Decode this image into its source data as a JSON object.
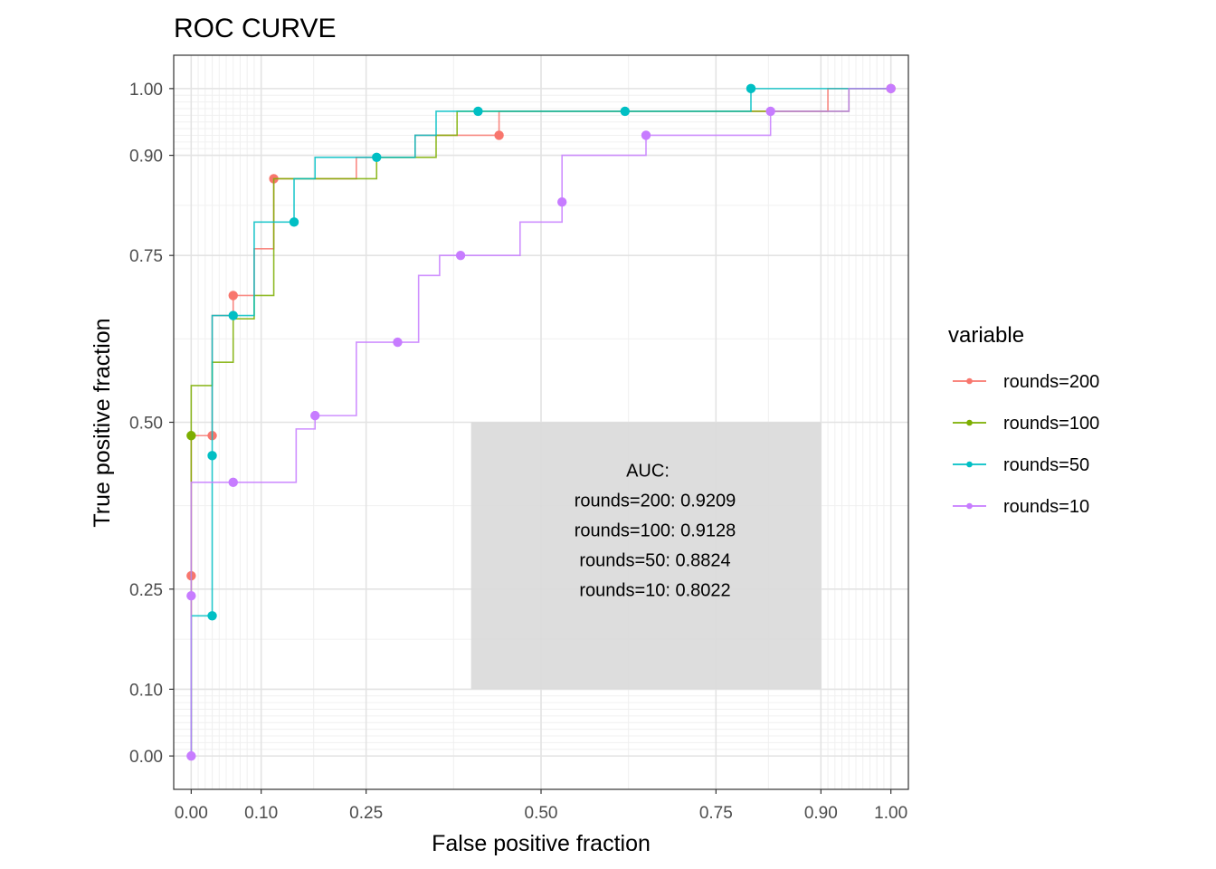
{
  "chart_data": {
    "type": "line",
    "title": "ROC CURVE",
    "xlabel": "False positive fraction",
    "ylabel": "True positive fraction",
    "xlim": [
      -0.025,
      1.025
    ],
    "ylim": [
      -0.05,
      1.05
    ],
    "x_ticks": [
      0.0,
      0.1,
      0.25,
      0.5,
      0.75,
      0.9,
      1.0
    ],
    "x_tick_labels": [
      "0.00",
      "0.10",
      "0.25",
      "0.50",
      "0.75",
      "0.90",
      "1.00"
    ],
    "y_ticks": [
      0.0,
      0.1,
      0.25,
      0.5,
      0.75,
      0.9,
      1.0
    ],
    "y_tick_labels": [
      "0.00",
      "0.10",
      "0.25",
      "0.50",
      "0.75",
      "0.90",
      "1.00"
    ],
    "grid": true,
    "legend": {
      "title": "variable",
      "position": "right"
    },
    "series": [
      {
        "name": "rounds=200",
        "color": "#F8766D",
        "steps": [
          [
            0,
            0
          ],
          [
            0,
            0.27
          ],
          [
            0,
            0.48
          ],
          [
            0.03,
            0.48
          ],
          [
            0.03,
            0.66
          ],
          [
            0.06,
            0.66
          ],
          [
            0.06,
            0.69
          ],
          [
            0.09,
            0.69
          ],
          [
            0.09,
            0.76
          ],
          [
            0.118,
            0.76
          ],
          [
            0.118,
            0.865
          ],
          [
            0.236,
            0.865
          ],
          [
            0.236,
            0.897
          ],
          [
            0.32,
            0.897
          ],
          [
            0.32,
            0.93
          ],
          [
            0.44,
            0.93
          ],
          [
            0.44,
            0.966
          ],
          [
            0.91,
            0.966
          ],
          [
            0.91,
            1.0
          ],
          [
            1.0,
            1.0
          ]
        ],
        "points": [
          [
            0,
            0.27
          ],
          [
            0.03,
            0.48
          ],
          [
            0.06,
            0.69
          ],
          [
            0.118,
            0.865
          ],
          [
            0.44,
            0.93
          ],
          [
            1.0,
            1.0
          ]
        ]
      },
      {
        "name": "rounds=100",
        "color": "#7CAE00",
        "steps": [
          [
            0,
            0
          ],
          [
            0,
            0.35
          ],
          [
            0,
            0.555
          ],
          [
            0.03,
            0.555
          ],
          [
            0.03,
            0.59
          ],
          [
            0.06,
            0.59
          ],
          [
            0.06,
            0.655
          ],
          [
            0.09,
            0.655
          ],
          [
            0.09,
            0.69
          ],
          [
            0.118,
            0.69
          ],
          [
            0.118,
            0.865
          ],
          [
            0.265,
            0.865
          ],
          [
            0.265,
            0.897
          ],
          [
            0.35,
            0.897
          ],
          [
            0.35,
            0.93
          ],
          [
            0.38,
            0.93
          ],
          [
            0.38,
            0.966
          ],
          [
            0.94,
            0.966
          ],
          [
            0.94,
            1.0
          ],
          [
            1.0,
            1.0
          ]
        ],
        "points": [
          [
            0,
            0.48
          ]
        ]
      },
      {
        "name": "rounds=50",
        "color": "#00BFC4",
        "steps": [
          [
            0,
            0
          ],
          [
            0,
            0.21
          ],
          [
            0.03,
            0.21
          ],
          [
            0.03,
            0.66
          ],
          [
            0.09,
            0.66
          ],
          [
            0.09,
            0.8
          ],
          [
            0.147,
            0.8
          ],
          [
            0.147,
            0.865
          ],
          [
            0.177,
            0.865
          ],
          [
            0.177,
            0.897
          ],
          [
            0.32,
            0.897
          ],
          [
            0.32,
            0.93
          ],
          [
            0.35,
            0.93
          ],
          [
            0.35,
            0.966
          ],
          [
            0.8,
            0.966
          ],
          [
            0.8,
            1.0
          ],
          [
            1.0,
            1.0
          ]
        ],
        "points": [
          [
            0.03,
            0.21
          ],
          [
            0.03,
            0.45
          ],
          [
            0.06,
            0.66
          ],
          [
            0.147,
            0.8
          ],
          [
            0.265,
            0.897
          ],
          [
            0.41,
            0.966
          ],
          [
            0.62,
            0.966
          ],
          [
            0.8,
            1.0
          ]
        ]
      },
      {
        "name": "rounds=10",
        "color": "#C77CFF",
        "steps": [
          [
            0,
            0
          ],
          [
            0,
            0.24
          ],
          [
            0,
            0.41
          ],
          [
            0.15,
            0.41
          ],
          [
            0.15,
            0.49
          ],
          [
            0.177,
            0.49
          ],
          [
            0.177,
            0.51
          ],
          [
            0.236,
            0.51
          ],
          [
            0.236,
            0.62
          ],
          [
            0.325,
            0.62
          ],
          [
            0.325,
            0.72
          ],
          [
            0.355,
            0.72
          ],
          [
            0.355,
            0.75
          ],
          [
            0.47,
            0.75
          ],
          [
            0.47,
            0.8
          ],
          [
            0.53,
            0.8
          ],
          [
            0.53,
            0.9
          ],
          [
            0.65,
            0.9
          ],
          [
            0.65,
            0.93
          ],
          [
            0.828,
            0.93
          ],
          [
            0.828,
            0.966
          ],
          [
            0.94,
            0.966
          ],
          [
            0.94,
            1.0
          ],
          [
            1.0,
            1.0
          ]
        ],
        "points": [
          [
            0,
            0
          ],
          [
            0,
            0.24
          ],
          [
            0.06,
            0.41
          ],
          [
            0.177,
            0.51
          ],
          [
            0.295,
            0.62
          ],
          [
            0.385,
            0.75
          ],
          [
            0.53,
            0.83
          ],
          [
            0.65,
            0.93
          ],
          [
            0.828,
            0.966
          ],
          [
            1.0,
            1.0
          ]
        ]
      }
    ],
    "annotation": {
      "x_range": [
        0.4,
        0.9
      ],
      "y_range": [
        0.1,
        0.5
      ],
      "lines": [
        "AUC:",
        "rounds=200: 0.9209",
        "rounds=100: 0.9128",
        "rounds=50: 0.8824",
        "rounds=10: 0.8022"
      ]
    }
  }
}
